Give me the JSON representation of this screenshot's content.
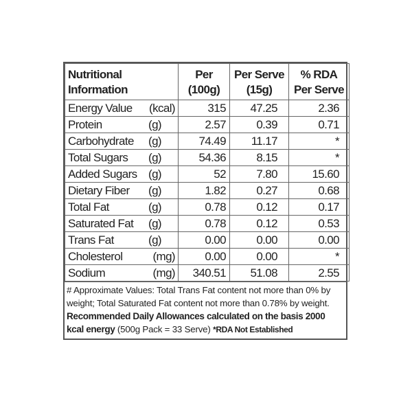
{
  "headers": [
    "Nutritional Information",
    "Per (100g)",
    "Per Serve (15g)",
    "% RDA Per Serve"
  ],
  "header_lines": [
    [
      "Nutritional",
      "Information"
    ],
    [
      "Per",
      "(100g)"
    ],
    [
      "Per Serve",
      "(15g)"
    ],
    [
      "% RDA",
      "Per Serve"
    ]
  ],
  "rows": [
    {
      "name": "Energy Value",
      "unit": "(kcal)",
      "per100": "315",
      "serve": "47.25",
      "rda": "2.36"
    },
    {
      "name": "Protein",
      "unit": "(g)",
      "per100": "2.57",
      "serve": "0.39",
      "rda": "0.71"
    },
    {
      "name": "Carbohydrate",
      "unit": "(g)",
      "per100": "74.49",
      "serve": "11.17",
      "rda": "*"
    },
    {
      "name": "Total Sugars",
      "unit": "(g)",
      "per100": "54.36",
      "serve": "8.15",
      "rda": "*"
    },
    {
      "name": "Added Sugars",
      "unit": "(g)",
      "per100": "52",
      "serve": "7.80",
      "rda": "15.60"
    },
    {
      "name": "Dietary Fiber",
      "unit": "(g)",
      "per100": "1.82",
      "serve": "0.27",
      "rda": "0.68"
    },
    {
      "name": "Total Fat",
      "unit": "(g)",
      "per100": "0.78",
      "serve": "0.12",
      "rda": "0.17"
    },
    {
      "name": "Saturated Fat",
      "unit": "(g)",
      "per100": "0.78",
      "serve": "0.12",
      "rda": "0.53"
    },
    {
      "name": "Trans Fat",
      "unit": "(g)",
      "per100": "0.00",
      "serve": "0.00",
      "rda": "0.00"
    },
    {
      "name": "Cholesterol",
      "unit": "(mg)",
      "per100": "0.00",
      "serve": "0.00",
      "rda": "*"
    },
    {
      "name": "Sodium",
      "unit": "(mg)",
      "per100": "340.51",
      "serve": "51.08",
      "rda": "2.55"
    }
  ],
  "footer": {
    "note": "# Approximate Values: Total Trans Fat content not more than 0% by weight; Total Saturated Fat content not more than 0.78% by weight.",
    "rda_bold": "Recommended Daily Allowances calculated on the basis 2000 kcal energy",
    "pack": "(500g Pack = 33 Serve)",
    "not_established": "*RDA Not Established"
  }
}
